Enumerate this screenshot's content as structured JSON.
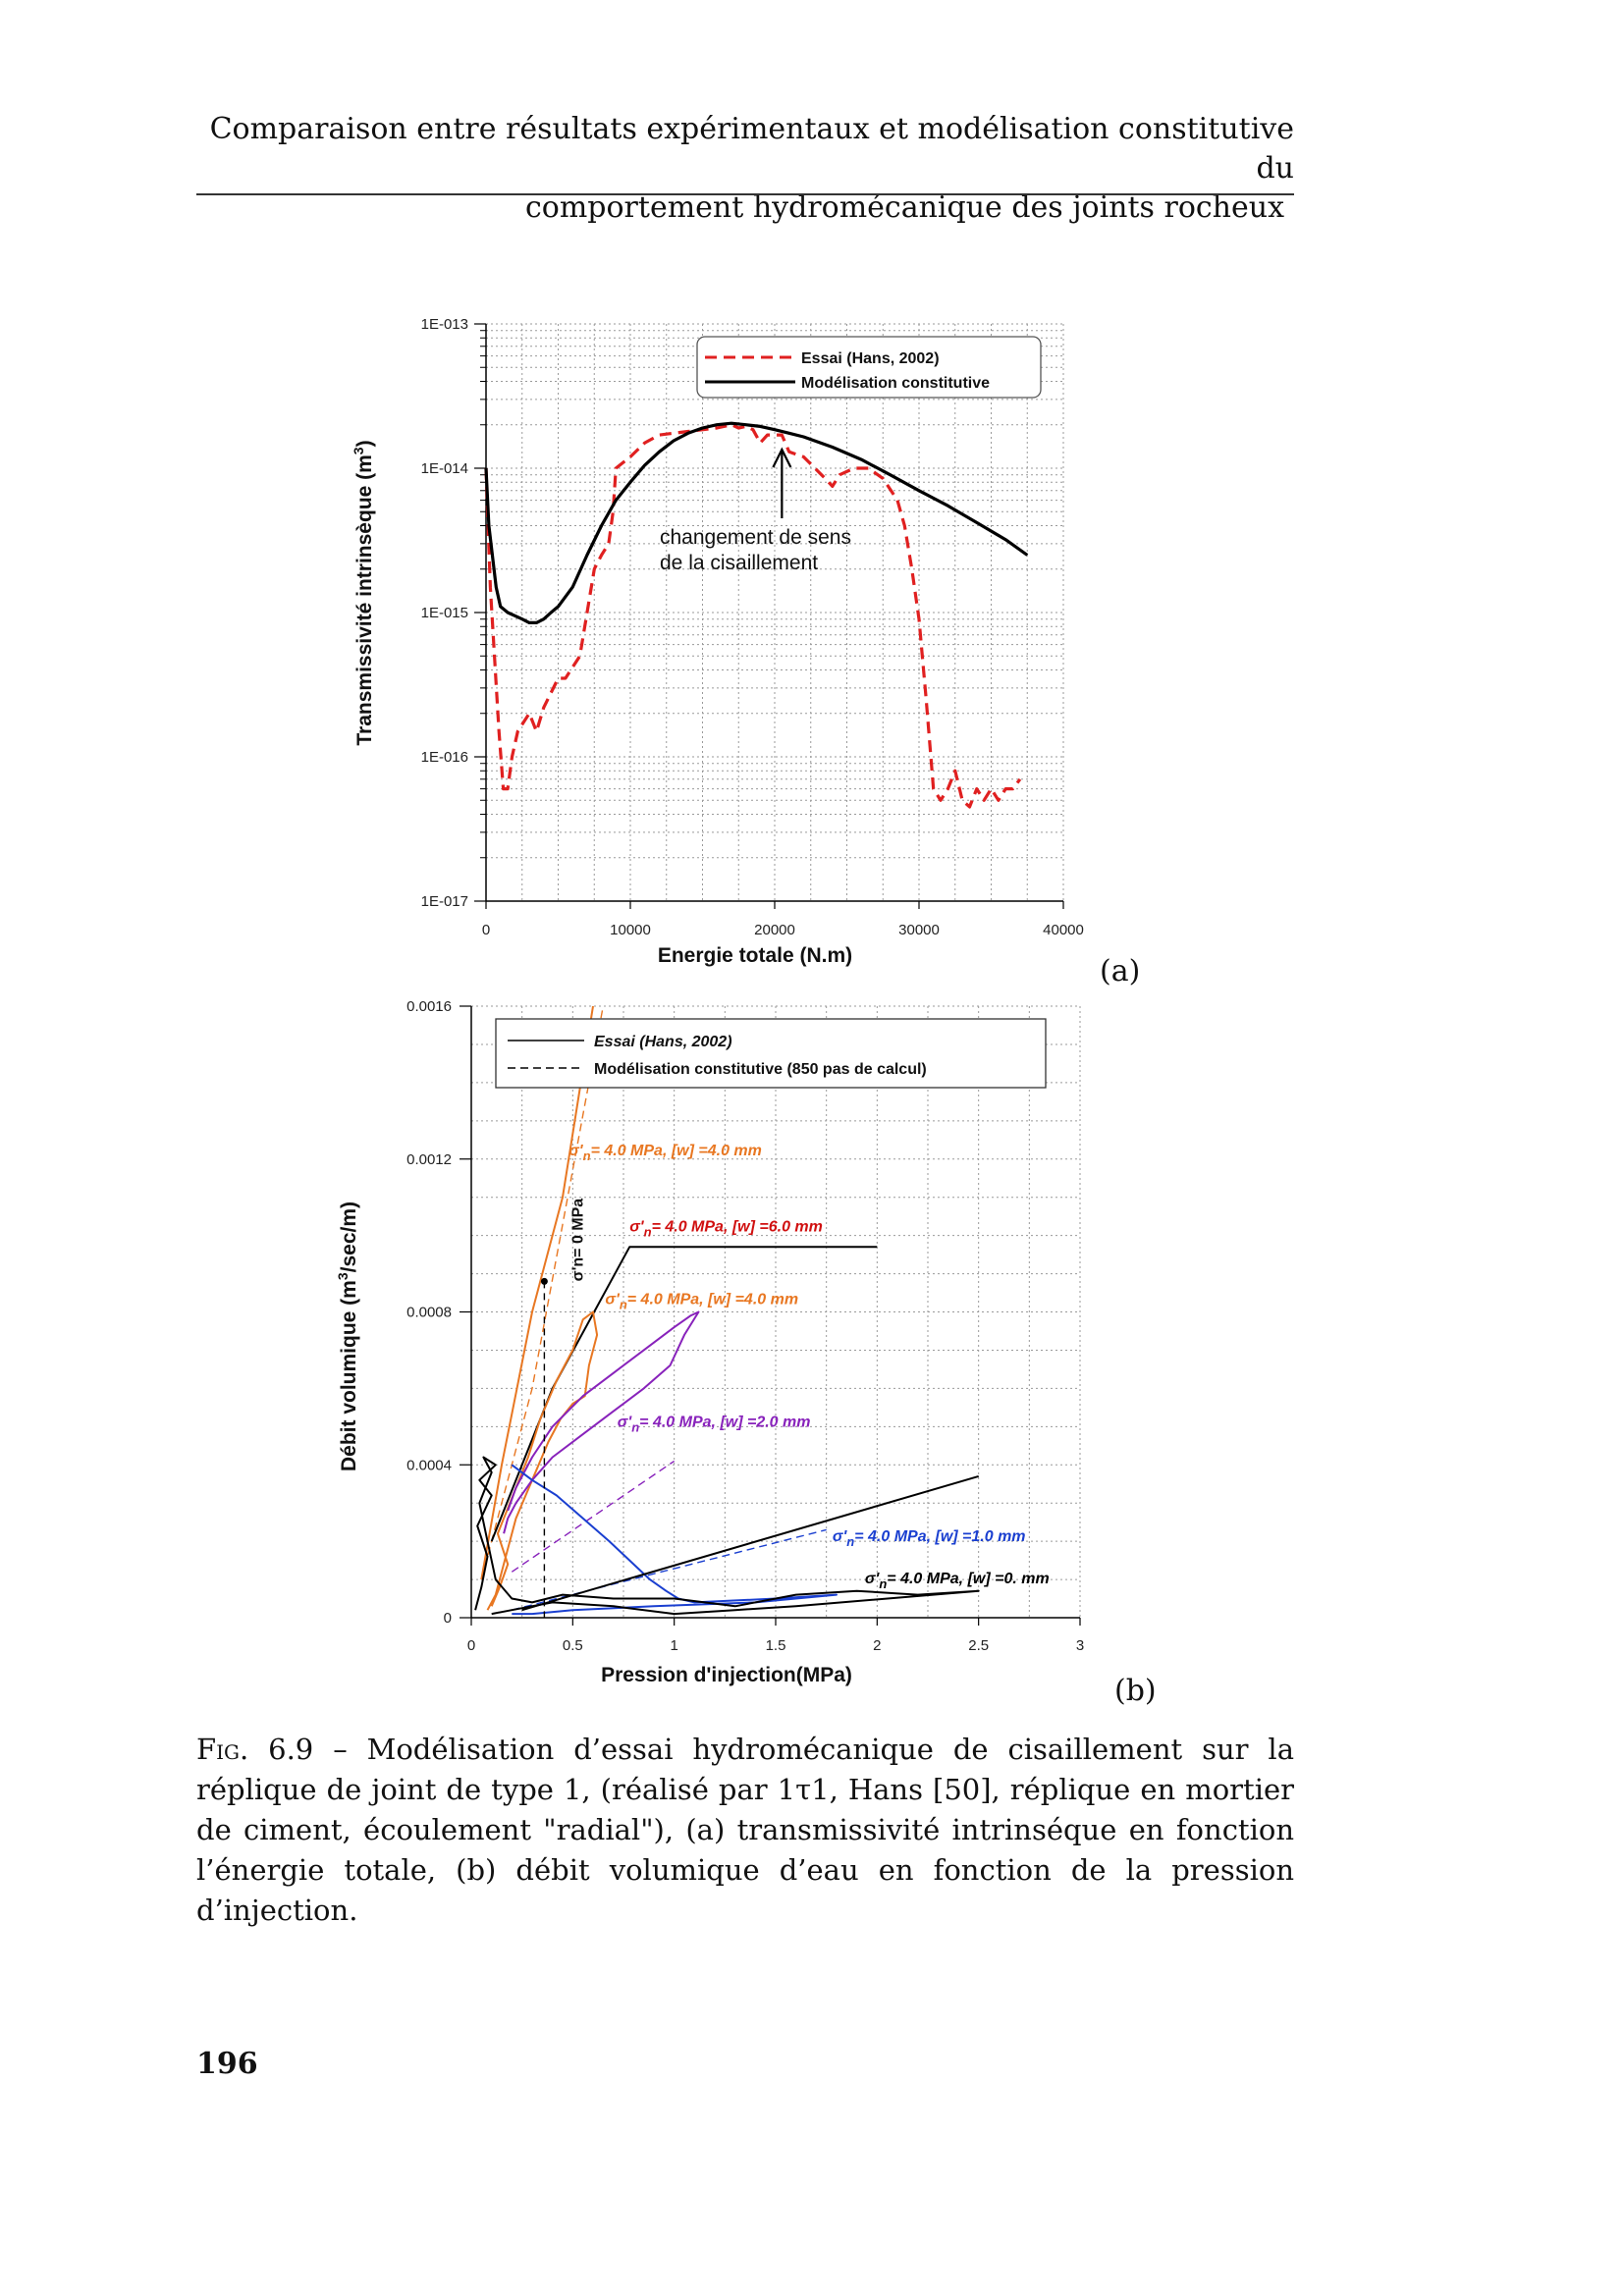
{
  "header": {
    "line1": "Comparaison entre résultats expérimentaux et modélisation constitutive du",
    "line2": "comportement hydromécanique des joints rocheux"
  },
  "caption": {
    "label": "Fig. 6.9",
    "text": " – Modélisation d’essai hydromécanique de cisaillement sur la réplique de joint de type 1, (réalisé par 1τ1, Hans [50], réplique en mortier de ciment, écoulement \"radial\"), (a) transmissivité intrinséque en fonction l’énergie totale, (b) débit volumique d’eau en fonction de la pression d’injection."
  },
  "page_number": "196",
  "chart_data": [
    {
      "id": "a",
      "type": "line",
      "sublabel": "(a)",
      "xlabel": "Energie totale (N.m)",
      "ylabel_main": "Transmissivité intrinsèque (m",
      "ylabel_sup": "3",
      "ylabel_end": ")",
      "xlim": [
        0,
        40000
      ],
      "ylim_log10": [
        -17,
        -13
      ],
      "yscale": "log",
      "grid": true,
      "legend_position": "top-right",
      "x_ticks": [
        0,
        10000,
        20000,
        30000,
        40000
      ],
      "y_tick_labels": [
        "1E-017",
        "1E-016",
        "1E-015",
        "1E-014",
        "1E-013"
      ],
      "legend": [
        "Essai (Hans, 2002)",
        "Modélisation constitutive"
      ],
      "annotation": [
        "changement de sens",
        "de la cisaillement"
      ],
      "series": [
        {
          "name": "Essai (Hans, 2002)",
          "color": "#e02020",
          "dash": true,
          "x": [
            0,
            300,
            900,
            1200,
            1500,
            1800,
            2200,
            3000,
            3500,
            4000,
            5000,
            5500,
            6500,
            7500,
            8000,
            8500,
            8800,
            9000,
            10000,
            11000,
            12000,
            14000,
            16000,
            17000,
            17500,
            18000,
            18500,
            19000,
            19500,
            20500,
            21000,
            22000,
            23500,
            24000,
            24500,
            25500,
            26500,
            27500,
            28500,
            29000,
            29500,
            30000,
            30500,
            31000,
            31500,
            32000,
            32500,
            33000,
            33500,
            34000,
            34500,
            35000,
            35500,
            36000,
            36500,
            37000
          ],
          "y": [
            1e-14,
            1.5e-15,
            1.5e-16,
            6e-17,
            6e-17,
            1e-16,
            1.5e-16,
            2e-16,
            1.5e-16,
            2.2e-16,
            3.5e-16,
            3.5e-16,
            5e-16,
            2e-15,
            2.5e-15,
            3e-15,
            5e-15,
            1e-14,
            1.2e-14,
            1.5e-14,
            1.7e-14,
            1.8e-14,
            1.9e-14,
            2e-14,
            1.9e-14,
            1.95e-14,
            1.85e-14,
            1.5e-14,
            1.7e-14,
            1.7e-14,
            1.3e-14,
            1.2e-14,
            8.5e-15,
            7.5e-15,
            9e-15,
            1e-14,
            1e-14,
            8.5e-15,
            6e-15,
            4e-15,
            2e-15,
            9e-16,
            2.5e-16,
            6e-17,
            5e-17,
            6e-17,
            8e-17,
            5e-17,
            4.5e-17,
            6e-17,
            5e-17,
            6e-17,
            5e-17,
            6e-17,
            6e-17,
            7e-17
          ]
        },
        {
          "name": "Modélisation constitutive",
          "color": "#000000",
          "dash": false,
          "x": [
            0,
            200,
            700,
            1000,
            1500,
            2000,
            2500,
            3000,
            3500,
            4000,
            4500,
            5000,
            6000,
            7000,
            8000,
            9000,
            10000,
            11000,
            12000,
            13000,
            14000,
            15000,
            16000,
            17000,
            18000,
            19000,
            20000,
            21000,
            22000,
            24000,
            26000,
            28000,
            30000,
            32000,
            34000,
            36000,
            37500
          ],
          "y": [
            1e-14,
            4e-15,
            1.5e-15,
            1.1e-15,
            1e-15,
            9.5e-16,
            9e-16,
            8.5e-16,
            8.5e-16,
            9e-16,
            1e-15,
            1.1e-15,
            1.5e-15,
            2.5e-15,
            4e-15,
            6e-15,
            8e-15,
            1.05e-14,
            1.3e-14,
            1.55e-14,
            1.75e-14,
            1.9e-14,
            2e-14,
            2.05e-14,
            2e-14,
            1.95e-14,
            1.85e-14,
            1.75e-14,
            1.65e-14,
            1.4e-14,
            1.15e-14,
            9e-15,
            7e-15,
            5.5e-15,
            4.2e-15,
            3.2e-15,
            2.5e-15
          ]
        }
      ]
    },
    {
      "id": "b",
      "type": "line",
      "sublabel": "(b)",
      "xlabel": "Pression d'injection(MPa)",
      "ylabel_main": "Débit volumique (m",
      "ylabel_sup": "3",
      "ylabel_end": "/sec/m)",
      "xlim": [
        0,
        3
      ],
      "ylim": [
        0,
        0.0016
      ],
      "grid": true,
      "legend_position": "top-right",
      "x_tick_labels": [
        "0",
        "0.5",
        "1",
        "1.5",
        "2",
        "2.5",
        "3"
      ],
      "y_tick_labels": [
        "0",
        "0.0004",
        "0.0008",
        "0.0012",
        "0.0016"
      ],
      "legend": [
        "Essai (Hans, 2002)",
        "Modélisation constitutive (850 pas de calcul)"
      ],
      "vertical_annotation": "σ'n= 0 MPa",
      "curve_labels": [
        {
          "sigma": "σ'",
          "sub": "n",
          "rest": "= 4.0 MPa, [w] =4.0 mm",
          "color": "#e87722",
          "x": 0.48,
          "y": 0.00121
        },
        {
          "sigma": "σ'",
          "sub": "n",
          "rest": "= 4.0 MPa, [w] =6.0 mm",
          "color": "#d01010",
          "x": 0.78,
          "y": 0.00101
        },
        {
          "sigma": "σ'",
          "sub": "n",
          "rest": "= 4.0 MPa, [w] =4.0 mm",
          "color": "#e87722",
          "x": 0.66,
          "y": 0.00082
        },
        {
          "sigma": "σ'",
          "sub": "n",
          "rest": "= 4.0 MPa, [w] =2.0 mm",
          "color": "#8822bb",
          "x": 0.72,
          "y": 0.0005
        },
        {
          "sigma": "σ'",
          "sub": "n",
          "rest": "= 4.0 MPa, [w] =1.0 mm",
          "color": "#1a3fd0",
          "x": 1.78,
          "y": 0.0002
        },
        {
          "sigma": "σ'",
          "sub": "n",
          "rest": "= 4.0 MPa, [w] =0. mm",
          "color": "#000000",
          "x": 1.94,
          "y": 9e-05
        }
      ],
      "series": [
        {
          "color": "#e87722",
          "dash": true,
          "x": [
            0.05,
            0.3,
            0.65
          ],
          "y": [
            0.0001,
            0.0006,
            0.0016
          ]
        },
        {
          "color": "#e87722",
          "dash": false,
          "x": [
            0.05,
            0.15,
            0.3,
            0.45,
            0.6
          ],
          "y": [
            0.0001,
            0.0004,
            0.0008,
            0.0011,
            0.0016
          ]
        },
        {
          "color": "#000000",
          "dash": false,
          "x": [
            0.1,
            0.4,
            0.78,
            2.0
          ],
          "y": [
            0.0002,
            0.0006,
            0.00097,
            0.00097
          ]
        },
        {
          "color": "#e87722",
          "dash": false,
          "x": [
            0.1,
            0.14,
            0.18,
            0.13,
            0.22,
            0.28,
            0.34,
            0.42,
            0.5,
            0.55,
            0.6,
            0.62,
            0.58,
            0.56,
            0.5,
            0.44,
            0.38,
            0.3,
            0.22,
            0.18,
            0.14,
            0.12,
            0.1,
            0.08
          ],
          "y": [
            3e-05,
            8e-05,
            0.00014,
            0.00022,
            0.00034,
            0.00042,
            0.00052,
            0.00062,
            0.0007,
            0.00078,
            0.0008,
            0.00074,
            0.00066,
            0.00058,
            0.00056,
            0.00052,
            0.00046,
            0.00036,
            0.00026,
            0.00018,
            0.0001,
            6e-05,
            4e-05,
            2e-05
          ]
        },
        {
          "color": "#8822bb",
          "dash": false,
          "x": [
            0.18,
            0.22,
            0.3,
            0.4,
            0.55,
            0.7,
            0.85,
            1.0,
            1.08,
            1.12,
            1.05,
            0.98,
            0.85,
            0.7,
            0.55,
            0.4,
            0.3,
            0.22,
            0.18,
            0.16
          ],
          "y": [
            0.00028,
            0.00034,
            0.00042,
            0.0005,
            0.00058,
            0.00064,
            0.0007,
            0.00076,
            0.00079,
            0.0008,
            0.00074,
            0.00066,
            0.0006,
            0.00054,
            0.00048,
            0.00042,
            0.00036,
            0.0003,
            0.00026,
            0.00022
          ]
        },
        {
          "color": "#8822bb",
          "dash": true,
          "x": [
            0.2,
            1.0
          ],
          "y": [
            0.00012,
            0.00041
          ]
        },
        {
          "color": "#1a3fd0",
          "dash": false,
          "x": [
            0.2,
            0.3,
            0.42,
            0.55,
            0.68,
            0.78,
            0.88,
            0.96,
            1.02,
            1.1,
            1.5,
            1.8,
            1.4,
            0.9,
            0.5,
            0.3,
            0.2
          ],
          "y": [
            0.0004,
            0.00036,
            0.00032,
            0.00026,
            0.0002,
            0.00015,
            0.0001,
            7e-05,
            5e-05,
            4e-05,
            5e-05,
            6e-05,
            4e-05,
            3e-05,
            2e-05,
            1e-05,
            1e-05
          ]
        },
        {
          "color": "#1a3fd0",
          "dash": true,
          "x": [
            0.2,
            1.75
          ],
          "y": [
            2e-05,
            0.00023
          ]
        },
        {
          "color": "#000000",
          "dash": true,
          "x": [
            0.25,
            2.05
          ],
          "y": [
            2e-05,
            0.0003
          ]
        },
        {
          "color": "#000000",
          "dash": false,
          "x": [
            0.25,
            2.5
          ],
          "y": [
            2e-05,
            0.00037
          ]
        },
        {
          "color": "#000000",
          "dash": false,
          "x": [
            0.02,
            0.05,
            0.08,
            0.03,
            0.1,
            0.04,
            0.12,
            0.06,
            0.1,
            0.04,
            0.08,
            0.12,
            0.2,
            0.3,
            0.45,
            0.7,
            1.0,
            1.3,
            1.6,
            1.9,
            2.2,
            2.5,
            1.6,
            1.3,
            1.0,
            0.7,
            0.4,
            0.2,
            0.1
          ],
          "y": [
            2e-05,
            8e-05,
            0.00016,
            0.00024,
            0.00032,
            0.00036,
            0.0004,
            0.00042,
            0.00038,
            0.0003,
            0.0002,
            0.0001,
            5e-05,
            4e-05,
            6e-05,
            5e-05,
            5e-05,
            3e-05,
            6e-05,
            7e-05,
            6e-05,
            7e-05,
            3e-05,
            2e-05,
            1e-05,
            3e-05,
            4e-05,
            2e-05,
            1e-05
          ]
        }
      ]
    }
  ]
}
